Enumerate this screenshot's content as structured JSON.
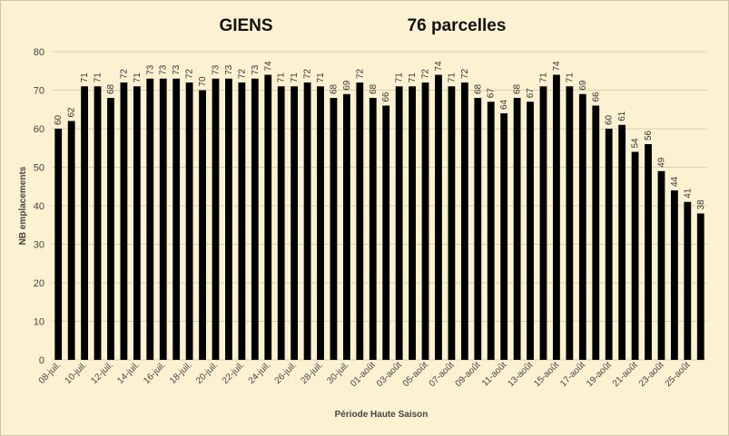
{
  "chart_data": {
    "type": "bar",
    "title_left": "GIENS",
    "title_right": "76 parcelles",
    "xlabel": "Période Haute Saison",
    "ylabel": "NB emplacements",
    "ylim": [
      0,
      80
    ],
    "yticks": [
      0,
      10,
      20,
      30,
      40,
      50,
      60,
      70,
      80
    ],
    "grid": true,
    "bar_color": "#000000",
    "background": "#FCF2D2",
    "categories": [
      "08-juil.",
      "09-juil.",
      "10-juil.",
      "11-juil.",
      "12-juil.",
      "13-juil.",
      "14-juil.",
      "15-juil.",
      "16-juil.",
      "17-juil.",
      "18-juil.",
      "19-juil.",
      "20-juil.",
      "21-juil.",
      "22-juil.",
      "23-juil.",
      "24-juil.",
      "25-juil.",
      "26-juil.",
      "27-juil.",
      "28-juil.",
      "29-juil.",
      "30-juil.",
      "31-juil.",
      "01-août",
      "02-août",
      "03-août",
      "04-août",
      "05-août",
      "06-août",
      "07-août",
      "08-août",
      "09-août",
      "10-août",
      "11-août",
      "12-août",
      "13-août",
      "14-août",
      "15-août",
      "16-août",
      "17-août",
      "18-août",
      "19-août",
      "20-août",
      "21-août",
      "22-août",
      "23-août",
      "24-août",
      "25-août",
      "26-août"
    ],
    "tick_labels": [
      "08-juil.",
      "10-juil.",
      "12-juil.",
      "14-juil.",
      "16-juil.",
      "18-juil.",
      "20-juil.",
      "22-juil.",
      "24-juil.",
      "26-juil.",
      "28-juil.",
      "30-juil.",
      "01-août",
      "03-août",
      "05-août",
      "07-août",
      "09-août",
      "11-août",
      "13-août",
      "15-août",
      "17-août",
      "19-août",
      "21-août",
      "23-août",
      "25-août"
    ],
    "values": [
      60,
      62,
      71,
      71,
      68,
      72,
      71,
      73,
      73,
      73,
      72,
      70,
      73,
      73,
      72,
      73,
      74,
      71,
      71,
      72,
      71,
      68,
      69,
      72,
      68,
      66,
      71,
      71,
      72,
      74,
      71,
      72,
      68,
      67,
      64,
      68,
      67,
      71,
      74,
      71,
      69,
      66,
      60,
      61,
      54,
      56,
      49,
      44,
      41,
      38
    ]
  }
}
